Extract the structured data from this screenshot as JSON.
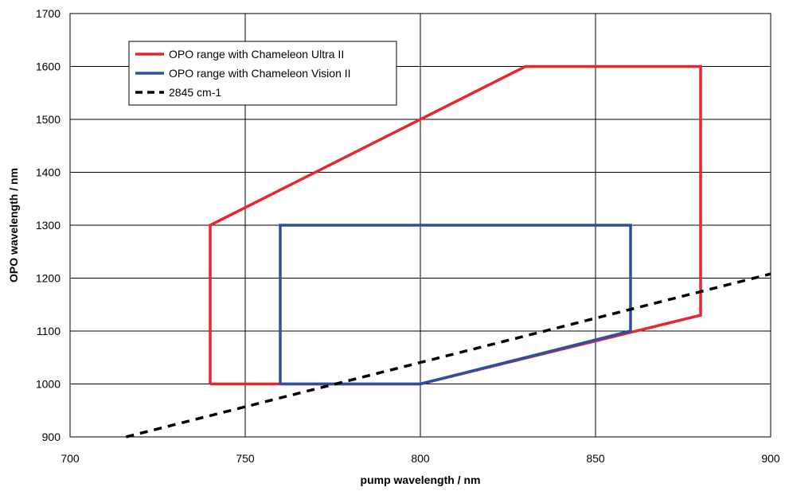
{
  "chart_data": {
    "type": "line",
    "title": "",
    "xlabel": "pump wavelength / nm",
    "ylabel": "OPO wavelength / nm",
    "xlim": [
      700,
      900
    ],
    "ylim": [
      900,
      1700
    ],
    "xticks": [
      700,
      750,
      800,
      850,
      900
    ],
    "yticks": [
      900,
      1000,
      1100,
      1200,
      1300,
      1400,
      1500,
      1600,
      1700
    ],
    "grid": true,
    "legend_position": "top-left",
    "series": [
      {
        "name": "OPO range with Chameleon Ultra II",
        "color": "#e8262b",
        "style": "solid",
        "points": [
          [
            740,
            1000
          ],
          [
            740,
            1300
          ],
          [
            830,
            1600
          ],
          [
            880,
            1600
          ],
          [
            880,
            1130
          ],
          [
            800,
            1000
          ],
          [
            740,
            1000
          ]
        ]
      },
      {
        "name": "OPO range with Chameleon Vision II",
        "color": "#2e4f9e",
        "style": "solid",
        "points": [
          [
            760,
            1000
          ],
          [
            760,
            1300
          ],
          [
            860,
            1300
          ],
          [
            860,
            1100
          ],
          [
            800,
            1000
          ],
          [
            760,
            1000
          ]
        ]
      },
      {
        "name": "2845 cm-1",
        "color": "#000000",
        "style": "dashed",
        "points": [
          [
            716,
            900
          ],
          [
            900,
            1208
          ]
        ]
      }
    ]
  }
}
